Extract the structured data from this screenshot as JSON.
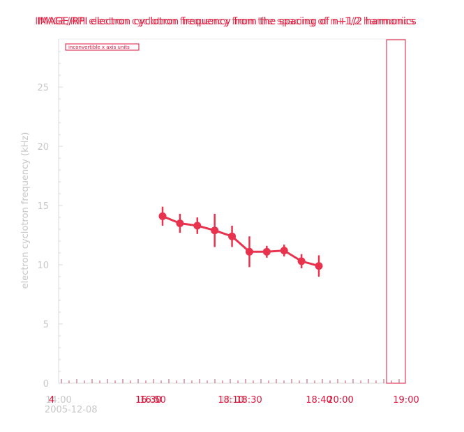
{
  "colors": {
    "accent": "#dc143c",
    "series": "#e8334f",
    "muted": "#c8c8c8",
    "axis": "#d9d9d9"
  },
  "chart_data": {
    "type": "line",
    "title_layer_a": "IMAGE/RPI electron cyclotron frequency from the spacing of n+1/2 harmonics",
    "title_layer_b": "IMAGE/RPI electron cyclotron frequency from the spacing of n+1/2 harmonics",
    "ylabel": "electron cyclotron frequency (kHz)",
    "xlabel": "",
    "note": "inconvertible x axis units",
    "ylim": [
      0,
      29
    ],
    "yticks": [
      "0",
      "5",
      "10",
      "15",
      "20",
      "25"
    ],
    "xaxis_bottom": {
      "tick_labels": [
        "14:00",
        "16:00",
        "18:00",
        "20:00"
      ],
      "date_label": "2005-12-08"
    },
    "xaxis_overlay": {
      "tick_labels": [
        "4",
        "16:30",
        "16:50",
        "18:10",
        "18:30",
        "18:40",
        "20:00",
        "19:00"
      ]
    },
    "series": [
      {
        "x": [
          "16:40",
          "16:50",
          "17:00",
          "17:10",
          "17:20",
          "17:30",
          "17:40",
          "17:50",
          "18:00",
          "18:10"
        ],
        "y": [
          14.1,
          13.5,
          13.3,
          12.9,
          12.4,
          11.1,
          11.1,
          11.2,
          10.3,
          9.9
        ],
        "err": [
          0.8,
          0.8,
          0.7,
          1.4,
          0.9,
          1.3,
          0.5,
          0.5,
          0.6,
          0.9
        ]
      }
    ],
    "grid": false
  }
}
